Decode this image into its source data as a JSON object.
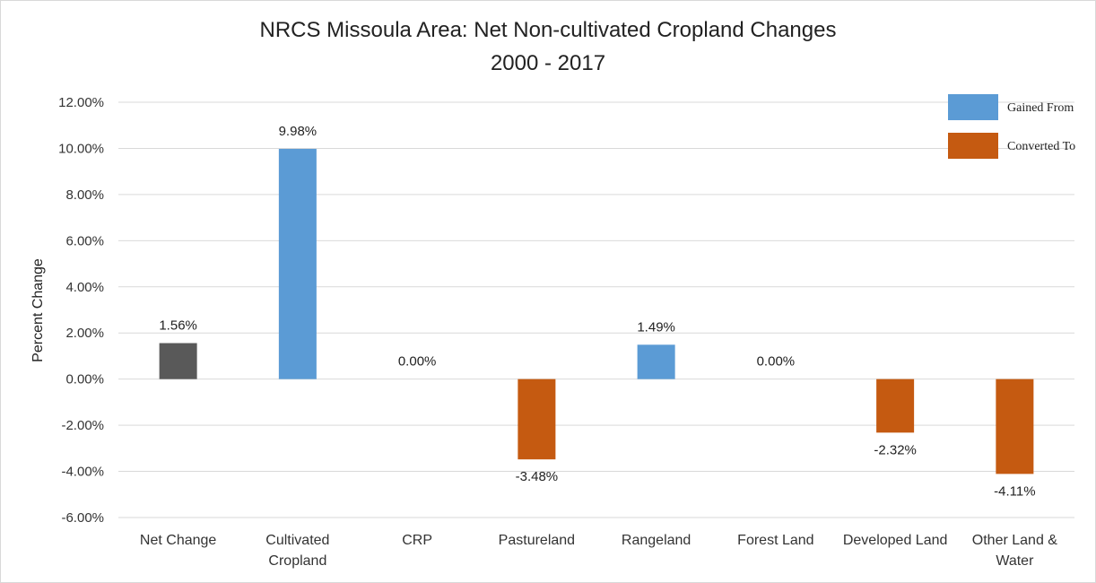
{
  "chart_data": {
    "type": "bar",
    "title": "NRCS Missoula Area: Net Non-cultivated Cropland Changes",
    "subtitle": "2000 - 2017",
    "ylabel": "Percent Change",
    "xlabel": "",
    "ylim": [
      -6,
      12
    ],
    "y_ticks": [
      "12.00%",
      "10.00%",
      "8.00%",
      "6.00%",
      "4.00%",
      "2.00%",
      "0.00%",
      "-2.00%",
      "-4.00%",
      "-6.00%"
    ],
    "grid": true,
    "legend_position": "top-right",
    "legend": [
      {
        "label": "Gained From",
        "color": "#5b9bd5"
      },
      {
        "label": "Converted To",
        "color": "#c55a11"
      }
    ],
    "categories": [
      [
        "Net Change"
      ],
      [
        "Cultivated",
        "Cropland"
      ],
      [
        "CRP"
      ],
      [
        "Pastureland"
      ],
      [
        "Rangeland"
      ],
      [
        "Forest Land"
      ],
      [
        "Developed Land"
      ],
      [
        "Other Land &",
        "Water"
      ]
    ],
    "values": [
      1.56,
      9.98,
      0.0,
      -3.48,
      1.49,
      0.0,
      -2.32,
      -4.11
    ],
    "data_labels": [
      "1.56%",
      "9.98%",
      "0.00%",
      "-3.48%",
      "1.49%",
      "0.00%",
      "-2.32%",
      "-4.11%"
    ],
    "bar_colors": [
      "#595959",
      "#5b9bd5",
      "#5b9bd5",
      "#c55a11",
      "#5b9bd5",
      "#5b9bd5",
      "#c55a11",
      "#c55a11"
    ]
  }
}
